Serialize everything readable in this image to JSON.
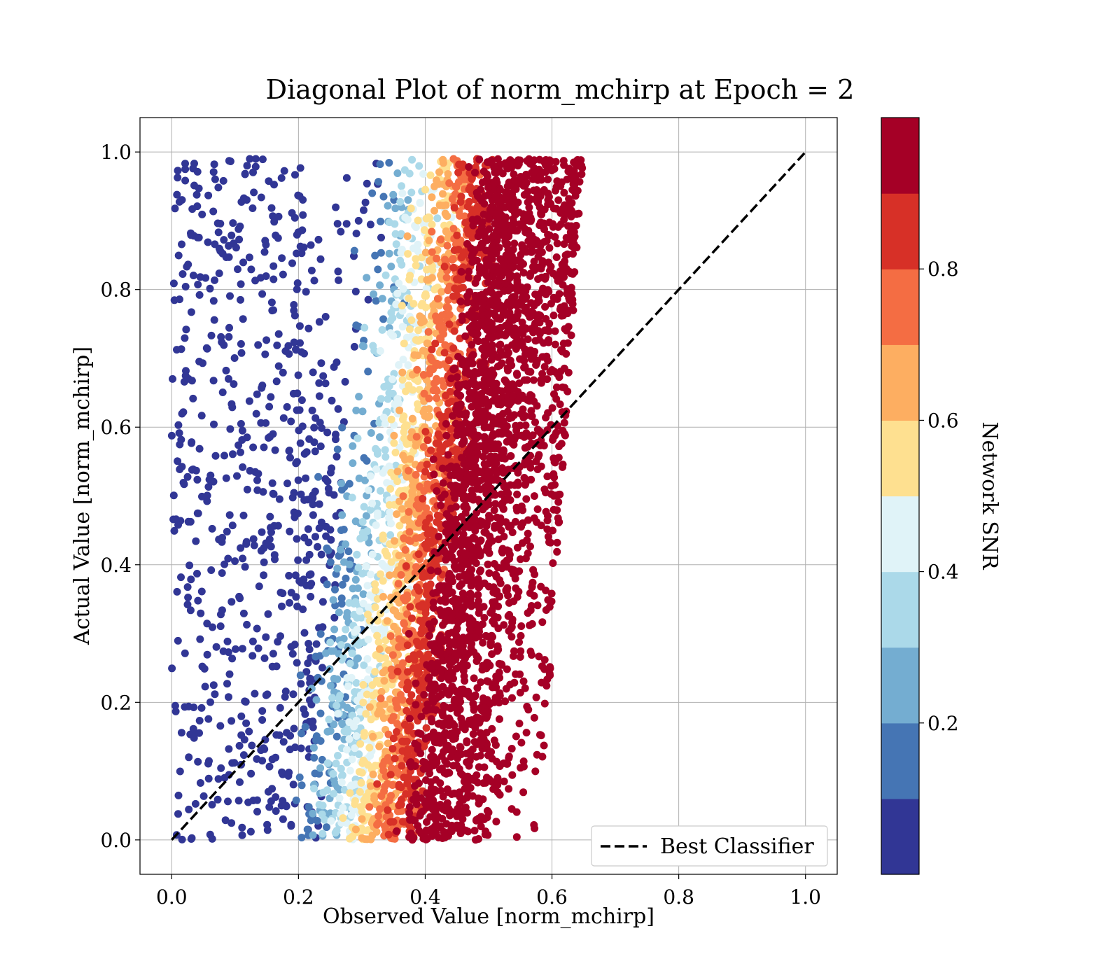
{
  "chart_data": {
    "type": "scatter",
    "title": "Diagonal Plot of norm_mchirp at Epoch = 2",
    "xlabel": "Observed Value [norm_mchirp]",
    "ylabel": "Actual Value [norm_mchirp]",
    "xlim": [
      -0.05,
      1.05
    ],
    "ylim": [
      -0.05,
      1.05
    ],
    "x_ticks": [
      "0.0",
      "0.2",
      "0.4",
      "0.6",
      "0.8",
      "1.0"
    ],
    "y_ticks": [
      "0.0",
      "0.2",
      "0.4",
      "0.6",
      "0.8",
      "1.0"
    ],
    "grid": true,
    "reference_line": {
      "name": "Best Classifier",
      "style": "dashed",
      "color": "#000000",
      "x": [
        0.0,
        1.0
      ],
      "y": [
        0.0,
        1.0
      ]
    },
    "legend": {
      "placement": "lower-right",
      "entries": [
        "Best Classifier"
      ]
    },
    "colorbar": {
      "label": "Network SNR",
      "ticks": [
        "0.2",
        "0.4",
        "0.6",
        "0.8"
      ],
      "tick_values": [
        0.2,
        0.4,
        0.6,
        0.8
      ],
      "range": [
        0.0,
        1.0
      ],
      "colors": [
        "#313695",
        "#4575b4",
        "#74add1",
        "#abd9e9",
        "#e0f3f8",
        "#fee090",
        "#fdae61",
        "#f46d43",
        "#d73027",
        "#a50026"
      ]
    },
    "scatter_description": {
      "x_range_observed": [
        0.0,
        0.67
      ],
      "y_range_actual": [
        0.0,
        1.0
      ],
      "color_by": "Network SNR",
      "trend": "higher observed values correspond to higher Network SNR"
    }
  }
}
